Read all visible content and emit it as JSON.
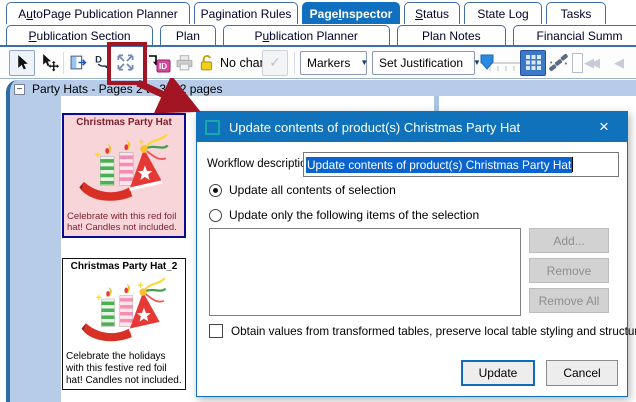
{
  "tabs": {
    "row1": [
      {
        "label": "AutoPage Publication Planner",
        "underline": 1,
        "active": false
      },
      {
        "label": "Pagination Rules",
        "underline": -1,
        "active": false
      },
      {
        "label": "Page Inspector",
        "underline": 5,
        "active": true
      },
      {
        "label": "Status",
        "underline": 0,
        "active": false
      },
      {
        "label": "State Log",
        "underline": -1,
        "active": false
      },
      {
        "label": "Tasks",
        "underline": -1,
        "active": false
      }
    ],
    "row2": [
      {
        "label": "Publication Section",
        "underline": 0,
        "active": false
      },
      {
        "label": "Plan",
        "underline": -1,
        "active": false
      },
      {
        "label": "Publication Planner",
        "underline": 1,
        "active": false
      },
      {
        "label": "Plan Notes",
        "underline": -1,
        "active": false
      },
      {
        "label": "Financial Summ",
        "underline": -1,
        "active": false
      }
    ]
  },
  "toolbar": {
    "no_changes_label": "No changes",
    "markers_label": "Markers",
    "set_justification_label": "Set Justification",
    "icons": [
      "select-cursor-icon",
      "move-cursor-icon",
      "reflow-page-icon",
      "data-flow-icon",
      "update-contents-icon",
      "assign-id-icon",
      "print-icon",
      "lock-open-icon",
      "commit-check-icon",
      "grid-view-icon",
      "chain-link-icon",
      "nav-first-icon",
      "nav-previous-icon"
    ],
    "nav_first_glyph": "◀◀",
    "nav_prev_glyph": "◀",
    "check_glyph": "✓"
  },
  "tree": {
    "expander_glyph": "−",
    "item_label": "Party Hats - Pages 2 to 3 = 2 pages"
  },
  "products": [
    {
      "title": "Christmas Party Hat",
      "caption": "Celebrate with this red foil hat! Candles not included."
    },
    {
      "title": "Christmas Party Hat_2",
      "caption": "Celebrate the holidays with this festive red foil hat! Candles not included."
    }
  ],
  "dialog": {
    "title": "Update contents of product(s) Christmas Party Hat",
    "close_glyph": "×",
    "workflow_label": "Workflow description:",
    "workflow_value": "Update contents of product(s) Christmas Party Hat",
    "radio_all_label": "Update all contents of selection",
    "radio_items_label": "Update only the following items of the selection",
    "add_button": "Add...",
    "remove_button": "Remove",
    "remove_all_button": "Remove All",
    "checkbox_label": "Obtain values from transformed tables, preserve local table styling and structure",
    "update_button": "Update",
    "cancel_button": "Cancel"
  },
  "colors": {
    "accent_blue": "#1172bc",
    "selection_blue": "#0a64cf",
    "annotation_red": "#a41523",
    "panel_blue": "#b7cce9",
    "disabled_gray": "#8e8e8e"
  }
}
